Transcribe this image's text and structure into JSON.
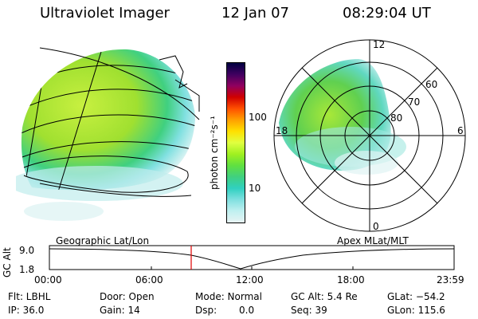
{
  "header": {
    "instrument": "Ultraviolet Imager",
    "date": "12 Jan 07",
    "time": "08:29:04 UT"
  },
  "colorbar": {
    "unit_label": "photon cm⁻²s⁻¹",
    "ticks": [
      "100",
      "10"
    ],
    "colors": [
      "#000040",
      "#400060",
      "#900060",
      "#d00000",
      "#ff5000",
      "#ffa000",
      "#ffe000",
      "#e0ff40",
      "#a0f020",
      "#60e040",
      "#40d080",
      "#30d0c0",
      "#80e0e0",
      "#c0f0f0",
      "#e8f4f4"
    ]
  },
  "polar_plot": {
    "mlt_labels": {
      "top": "12",
      "left": "18",
      "right": "6",
      "bottom": "0"
    },
    "lat_labels": [
      "60",
      "70",
      "80"
    ]
  },
  "orbit_panel": {
    "y_axis_title": "GC Alt",
    "y_ticks": [
      "9.0",
      "1.8"
    ],
    "left_title": "Geographic Lat/Lon",
    "right_title": "Apex MLat/MLT",
    "x_ticks": [
      "00:00",
      "06:00",
      "12:00",
      "18:00",
      "23:59"
    ],
    "current_time_marker": "08:29:04"
  },
  "info": {
    "flt": "Flt: LBHL",
    "ip": "IP: 36.0",
    "door": "Door: Open",
    "gain": "Gain: 14",
    "mode": "Mode: Normal",
    "dsp_label": "Dsp:",
    "dsp_value": "0.0",
    "gcalt": "GC Alt: 5.4 Re",
    "seq": "Seq: 39",
    "glat": "GLat: −54.2",
    "glon": "GLon: 115.6"
  }
}
